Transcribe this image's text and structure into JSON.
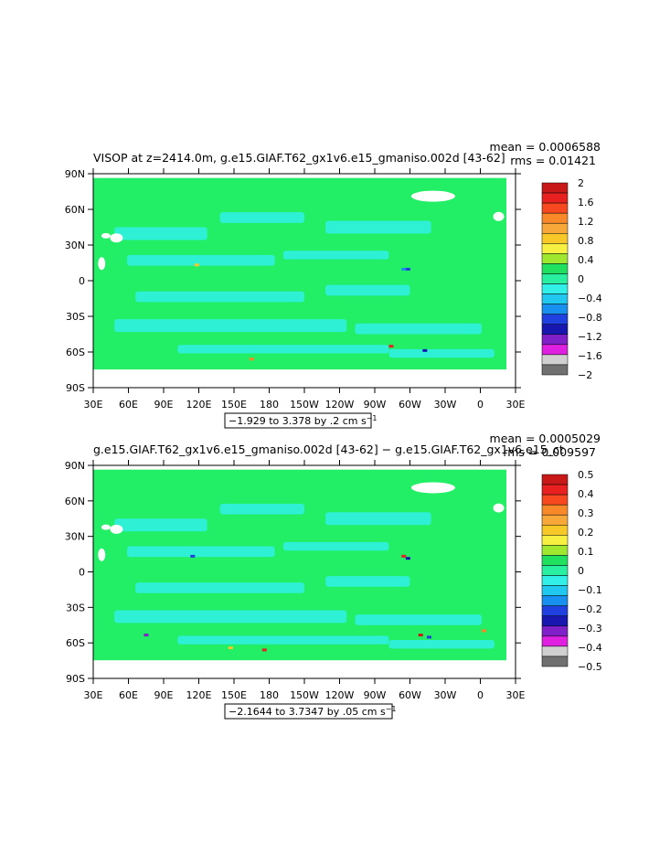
{
  "chart_data": [
    {
      "type": "heatmap",
      "title": "VISOP at z=2414.0m, g.e15.GIAF.T62_gx1v6.e15_gmaniso.002d [43-62]",
      "stats": {
        "mean": "mean = 0.0006588",
        "rms": "rms = 0.01421"
      },
      "x_ticks": [
        "30E",
        "60E",
        "90E",
        "120E",
        "150E",
        "180",
        "150W",
        "120W",
        "90W",
        "60W",
        "30W",
        "0",
        "30E"
      ],
      "y_ticks": [
        "90N",
        "60N",
        "30N",
        "0",
        "30S",
        "60S",
        "90S"
      ],
      "range_note": "−1.929 to 3.378 by .2 cm s",
      "range_unit_exp": "−1",
      "colorbar": {
        "labels": [
          "2",
          "1.6",
          "1.2",
          "0.8",
          "0.4",
          "0",
          "−0.4",
          "−0.8",
          "−1.2",
          "−1.6",
          "−2"
        ],
        "colors": [
          "#c81818",
          "#e82020",
          "#f84820",
          "#f88828",
          "#f8a838",
          "#f8c828",
          "#f8f040",
          "#a0e830",
          "#20e060",
          "#28f0a0",
          "#30f0e8",
          "#20c8f0",
          "#1890f0",
          "#2040e0",
          "#1818b0",
          "#8020c8",
          "#e020e0",
          "#d0d0d0",
          "#707070"
        ]
      },
      "field_color": "#22ee66",
      "anomaly_color": "#30f0e8"
    },
    {
      "type": "heatmap",
      "title": "g.e15.GIAF.T62_gx1v6.e15_gmaniso.002d [43-62] − g.e15.GIAF.T62_gx1v6.e15_ct",
      "stats": {
        "mean": "mean = 0.0005029",
        "rms": "rms = 0.009597"
      },
      "x_ticks": [
        "30E",
        "60E",
        "90E",
        "120E",
        "150E",
        "180",
        "150W",
        "120W",
        "90W",
        "60W",
        "30W",
        "0",
        "30E"
      ],
      "y_ticks": [
        "90N",
        "60N",
        "30N",
        "0",
        "30S",
        "60S",
        "90S"
      ],
      "range_note": "−2.1644 to 3.7347 by .05 cm s",
      "range_unit_exp": "−1",
      "colorbar": {
        "labels": [
          "0.5",
          "0.4",
          "0.3",
          "0.2",
          "0.1",
          "0",
          "−0.1",
          "−0.2",
          "−0.3",
          "−0.4",
          "−0.5"
        ],
        "colors": [
          "#c81818",
          "#e82020",
          "#f84820",
          "#f88828",
          "#f8a838",
          "#f8c828",
          "#f8f040",
          "#a0e830",
          "#20e060",
          "#28f0a0",
          "#30f0e8",
          "#20c8f0",
          "#1890f0",
          "#2040e0",
          "#1818b0",
          "#8020c8",
          "#e020e0",
          "#d0d0d0",
          "#707070"
        ]
      },
      "field_color": "#22ee66",
      "anomaly_color": "#30f0e8"
    }
  ]
}
